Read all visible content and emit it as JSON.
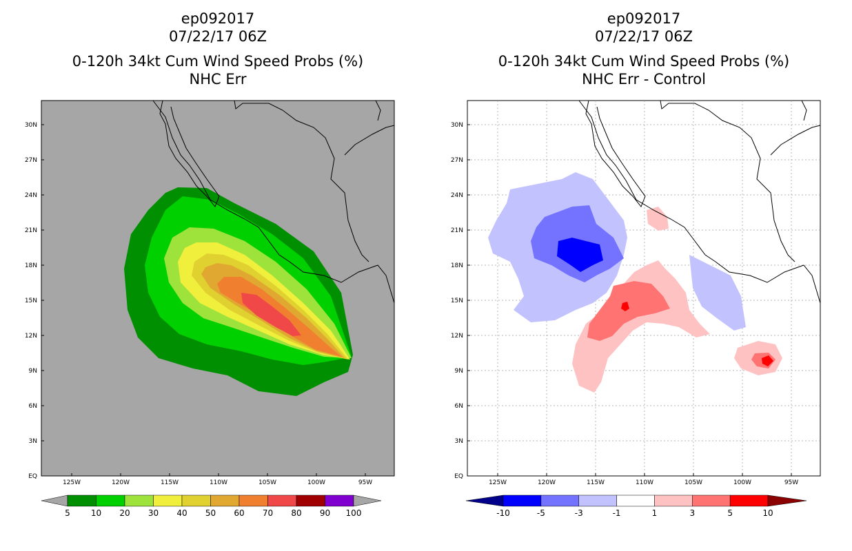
{
  "left_panel": {
    "title_lines": [
      "ep092017",
      "07/22/17 06Z",
      "0-120h 34kt Cum Wind Speed Probs (%)",
      "NHC Err"
    ],
    "lat_labels": [
      "30N",
      "27N",
      "24N",
      "21N",
      "18N",
      "15N",
      "12N",
      "9N",
      "6N",
      "3N",
      "EQ"
    ],
    "lon_labels": [
      "125W",
      "120W",
      "115W",
      "110W",
      "105W",
      "100W",
      "95W"
    ],
    "colorbar": {
      "labels": [
        "5",
        "10",
        "20",
        "30",
        "40",
        "50",
        "60",
        "70",
        "80",
        "90",
        "100"
      ],
      "colors": [
        "#008f00",
        "#00d000",
        "#9ee33c",
        "#f0f03c",
        "#e0d030",
        "#e0a830",
        "#f08030",
        "#f04848",
        "#a00000",
        "#8000d0"
      ],
      "end_color": "#a6a6a6"
    },
    "background_color": "#a6a6a6"
  },
  "right_panel": {
    "title_lines": [
      "ep092017",
      "07/22/17 06Z",
      "0-120h 34kt Cum Wind Speed Probs (%)",
      "NHC Err - Control"
    ],
    "lat_labels": [
      "30N",
      "27N",
      "24N",
      "21N",
      "18N",
      "15N",
      "12N",
      "9N",
      "6N",
      "3N",
      "EQ"
    ],
    "lon_labels": [
      "125W",
      "120W",
      "115W",
      "110W",
      "105W",
      "100W",
      "95W"
    ],
    "colorbar": {
      "labels": [
        "-10",
        "-5",
        "-3",
        "-1",
        "1",
        "3",
        "5",
        "10"
      ],
      "colors": [
        "#0000ff",
        "#7373ff",
        "#c2c2ff",
        "#ffffff",
        "#ffc2c2",
        "#ff7373",
        "#ff0000"
      ],
      "end_low_color": "#00008b",
      "end_high_color": "#8b0000"
    }
  }
}
